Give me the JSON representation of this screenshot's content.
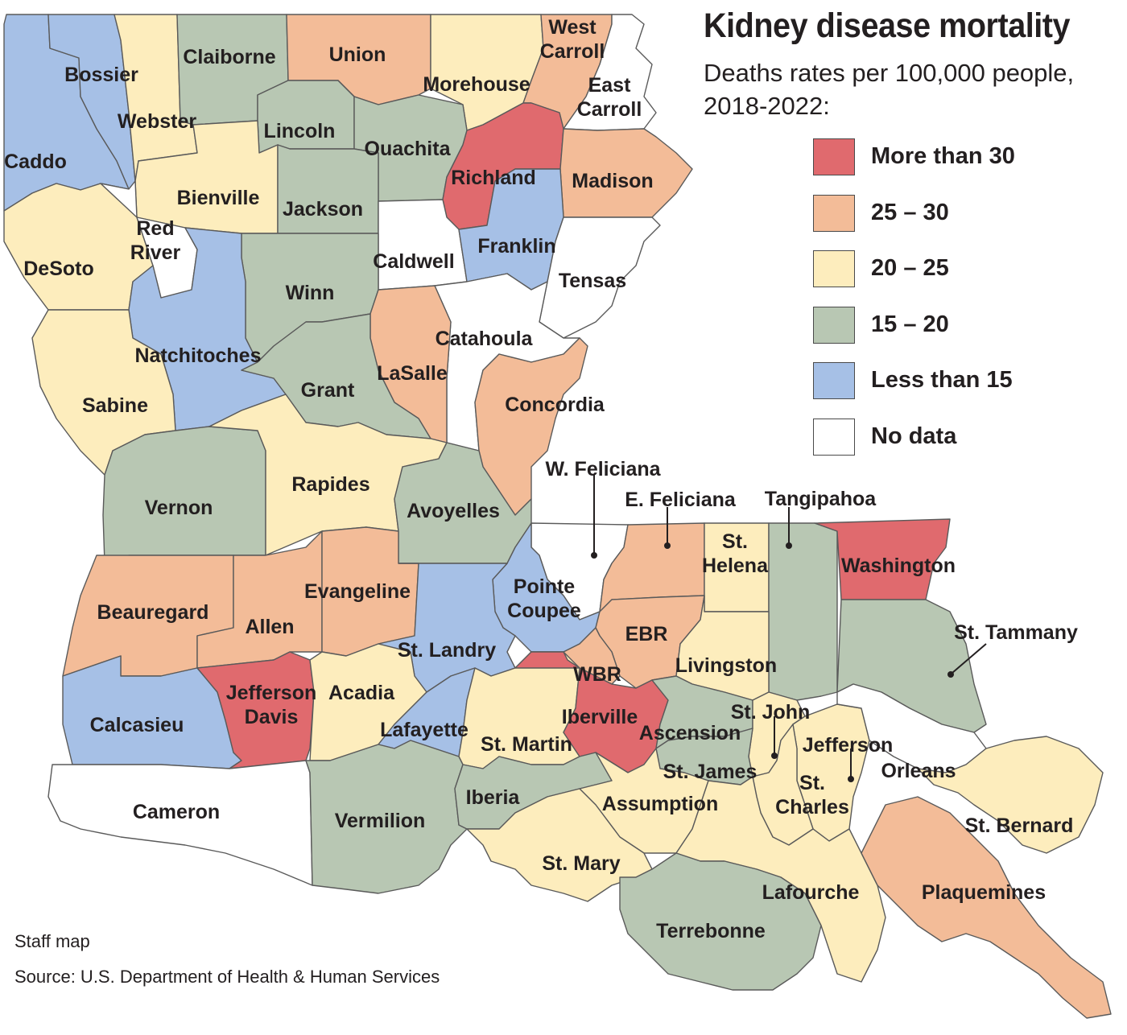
{
  "title": "Kidney disease mortality",
  "subtitle_line1": "Deaths rates per 100,000 people,",
  "subtitle_line2": "2018-2022:",
  "legend": [
    {
      "label": "More than 30",
      "color": "#e06a6e"
    },
    {
      "label": "25 – 30",
      "color": "#f3bc98"
    },
    {
      "label": "20 – 25",
      "color": "#fdedbd"
    },
    {
      "label": "15 – 20",
      "color": "#b8c7b3"
    },
    {
      "label": "Less than 15",
      "color": "#a6c0e6"
    },
    {
      "label": "No data",
      "color": "#ffffff"
    }
  ],
  "credit": "Staff map",
  "source": "Source: U.S. Department of Health & Human Services",
  "parishes": [
    {
      "name": "Caddo",
      "category": "lt15",
      "label": [
        "Caddo"
      ]
    },
    {
      "name": "Bossier",
      "category": "lt15",
      "label": [
        "Bossier"
      ]
    },
    {
      "name": "Webster",
      "category": "20-25",
      "label": [
        "Webster"
      ]
    },
    {
      "name": "Claiborne",
      "category": "15-20",
      "label": [
        "Claiborne"
      ]
    },
    {
      "name": "Union",
      "category": "25-30",
      "label": [
        "Union"
      ]
    },
    {
      "name": "Morehouse",
      "category": "20-25",
      "label": [
        "Morehouse"
      ]
    },
    {
      "name": "West Carroll",
      "category": "25-30",
      "label": [
        "West",
        "Carroll"
      ]
    },
    {
      "name": "East Carroll",
      "category": "nodata",
      "label": [
        "East",
        "Carroll"
      ]
    },
    {
      "name": "Lincoln",
      "category": "15-20",
      "label": [
        "Lincoln"
      ]
    },
    {
      "name": "Ouachita",
      "category": "15-20",
      "label": [
        "Ouachita"
      ]
    },
    {
      "name": "Richland",
      "category": "gt30",
      "label": [
        "Richland"
      ]
    },
    {
      "name": "Madison",
      "category": "25-30",
      "label": [
        "Madison"
      ]
    },
    {
      "name": "Bienville",
      "category": "20-25",
      "label": [
        "Bienville"
      ]
    },
    {
      "name": "Jackson",
      "category": "15-20",
      "label": [
        "Jackson"
      ]
    },
    {
      "name": "Caldwell",
      "category": "nodata",
      "label": [
        "Caldwell"
      ]
    },
    {
      "name": "Franklin",
      "category": "lt15",
      "label": [
        "Franklin"
      ]
    },
    {
      "name": "Tensas",
      "category": "nodata",
      "label": [
        "Tensas"
      ]
    },
    {
      "name": "DeSoto",
      "category": "20-25",
      "label": [
        "DeSoto"
      ]
    },
    {
      "name": "Red River",
      "category": "nodata",
      "label": [
        "Red",
        "River"
      ]
    },
    {
      "name": "Winn",
      "category": "15-20",
      "label": [
        "Winn"
      ]
    },
    {
      "name": "Natchitoches",
      "category": "lt15",
      "label": [
        "Natchitoches"
      ]
    },
    {
      "name": "Catahoula",
      "category": "nodata",
      "label": [
        "Catahoula"
      ]
    },
    {
      "name": "LaSalle",
      "category": "25-30",
      "label": [
        "LaSalle"
      ]
    },
    {
      "name": "Grant",
      "category": "15-20",
      "label": [
        "Grant"
      ]
    },
    {
      "name": "Sabine",
      "category": "20-25",
      "label": [
        "Sabine"
      ]
    },
    {
      "name": "Concordia",
      "category": "25-30",
      "label": [
        "Concordia"
      ]
    },
    {
      "name": "Vernon",
      "category": "15-20",
      "label": [
        "Vernon"
      ]
    },
    {
      "name": "Rapides",
      "category": "20-25",
      "label": [
        "Rapides"
      ]
    },
    {
      "name": "Avoyelles",
      "category": "15-20",
      "label": [
        "Avoyelles"
      ]
    },
    {
      "name": "W. Feliciana",
      "category": "nodata",
      "label": [
        "W. Feliciana"
      ]
    },
    {
      "name": "E. Feliciana",
      "category": "25-30",
      "label": [
        "E. Feliciana"
      ]
    },
    {
      "name": "St. Helena",
      "category": "20-25",
      "label": [
        "St.",
        "Helena"
      ]
    },
    {
      "name": "Tangipahoa",
      "category": "15-20",
      "label": [
        "Tangipahoa"
      ]
    },
    {
      "name": "Washington",
      "category": "gt30",
      "label": [
        "Washington"
      ]
    },
    {
      "name": "Beauregard",
      "category": "25-30",
      "label": [
        "Beauregard"
      ]
    },
    {
      "name": "Allen",
      "category": "25-30",
      "label": [
        "Allen"
      ]
    },
    {
      "name": "Evangeline",
      "category": "25-30",
      "label": [
        "Evangeline"
      ]
    },
    {
      "name": "Pointe Coupee",
      "category": "lt15",
      "label": [
        "Pointe",
        "Coupee"
      ]
    },
    {
      "name": "St. Landry",
      "category": "lt15",
      "label": [
        "St. Landry"
      ]
    },
    {
      "name": "EBR",
      "category": "25-30",
      "label": [
        "EBR"
      ]
    },
    {
      "name": "WBR",
      "category": "25-30",
      "label": [
        "WBR"
      ]
    },
    {
      "name": "Livingston",
      "category": "20-25",
      "label": [
        "Livingston"
      ]
    },
    {
      "name": "St. Tammany",
      "category": "15-20",
      "label": [
        "St. Tammany"
      ]
    },
    {
      "name": "Calcasieu",
      "category": "lt15",
      "label": [
        "Calcasieu"
      ]
    },
    {
      "name": "Jefferson Davis",
      "category": "gt30",
      "label": [
        "Jefferson",
        "Davis"
      ]
    },
    {
      "name": "Acadia",
      "category": "20-25",
      "label": [
        "Acadia"
      ]
    },
    {
      "name": "Lafayette",
      "category": "lt15",
      "label": [
        "Lafayette"
      ]
    },
    {
      "name": "St. Martin",
      "category": "20-25",
      "label": [
        "St. Martin"
      ]
    },
    {
      "name": "Iberville",
      "category": "gt30",
      "label": [
        "Iberville"
      ]
    },
    {
      "name": "Ascension",
      "category": "15-20",
      "label": [
        "Ascension"
      ]
    },
    {
      "name": "St. John",
      "category": "20-25",
      "label": [
        "St. John"
      ]
    },
    {
      "name": "St. James",
      "category": "15-20",
      "label": [
        "St. James"
      ]
    },
    {
      "name": "Jefferson",
      "category": "20-25",
      "label": [
        "Jefferson"
      ]
    },
    {
      "name": "Orleans",
      "category": "nodata",
      "label": [
        "Orleans"
      ]
    },
    {
      "name": "St. Charles",
      "category": "20-25",
      "label": [
        "St.",
        "Charles"
      ]
    },
    {
      "name": "St. Bernard",
      "category": "20-25",
      "label": [
        "St. Bernard"
      ]
    },
    {
      "name": "Cameron",
      "category": "nodata",
      "label": [
        "Cameron"
      ]
    },
    {
      "name": "Vermilion",
      "category": "15-20",
      "label": [
        "Vermilion"
      ]
    },
    {
      "name": "Iberia",
      "category": "15-20",
      "label": [
        "Iberia"
      ]
    },
    {
      "name": "Assumption",
      "category": "20-25",
      "label": [
        "Assumption"
      ]
    },
    {
      "name": "St. Mary",
      "category": "20-25",
      "label": [
        "St. Mary"
      ]
    },
    {
      "name": "Lafourche",
      "category": "20-25",
      "label": [
        "Lafourche"
      ]
    },
    {
      "name": "Terrebonne",
      "category": "15-20",
      "label": [
        "Terrebonne"
      ]
    },
    {
      "name": "Plaquemines",
      "category": "25-30",
      "label": [
        "Plaquemines"
      ]
    }
  ]
}
